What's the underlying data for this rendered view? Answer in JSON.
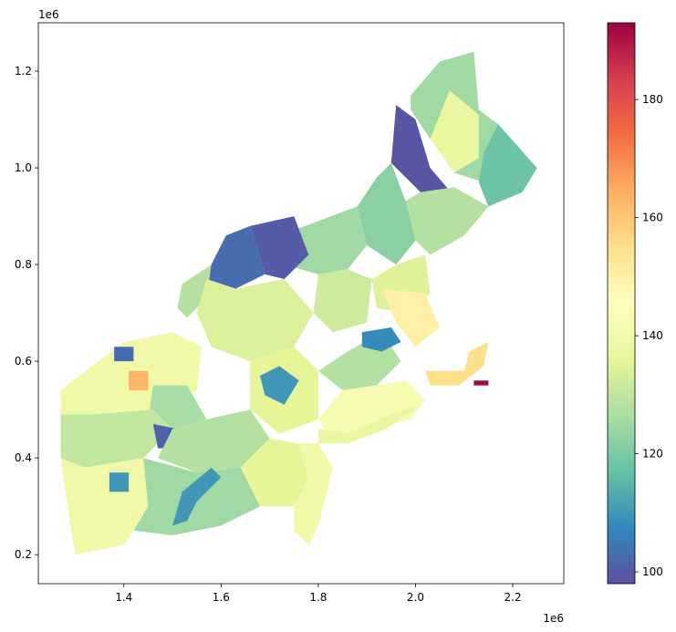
{
  "figure": {
    "x_offset_label": "1e6",
    "y_offset_label": "1e6"
  },
  "chart_data": {
    "type": "heatmap",
    "subtype": "choropleth",
    "title": "",
    "xlabel": "",
    "ylabel": "",
    "xlim": [
      1.22,
      3.01
    ],
    "ylim": [
      0.14,
      1.3
    ],
    "x_ticks": [
      {
        "value": 1.4,
        "label": "1.4"
      },
      {
        "value": 1.6,
        "label": "1.6"
      },
      {
        "value": 1.8,
        "label": "1.8"
      },
      {
        "value": 2.0,
        "label": "2.0"
      },
      {
        "value": 2.2,
        "label": "2.2"
      }
    ],
    "y_ticks": [
      {
        "value": 0.2,
        "label": "0.2"
      },
      {
        "value": 0.4,
        "label": "0.4"
      },
      {
        "value": 0.6,
        "label": "0.6"
      },
      {
        "value": 0.8,
        "label": "0.8"
      },
      {
        "value": 1.0,
        "label": "1.0"
      },
      {
        "value": 1.2,
        "label": "1.2"
      }
    ],
    "colorbar": {
      "colormap": "Spectral_r",
      "min": 98,
      "max": 193,
      "ticks": [
        {
          "value": 100,
          "label": "100"
        },
        {
          "value": 120,
          "label": "120"
        },
        {
          "value": 140,
          "label": "140"
        },
        {
          "value": 160,
          "label": "160"
        },
        {
          "value": 180,
          "label": "180"
        }
      ]
    },
    "regions": [
      {
        "id": "maine-north",
        "value": 125,
        "polygon": [
          [
            1.99,
            1.15
          ],
          [
            2.05,
            1.22
          ],
          [
            2.12,
            1.24
          ],
          [
            2.13,
            1.12
          ],
          [
            2.17,
            1.09
          ],
          [
            2.19,
            1.03
          ],
          [
            2.14,
            0.97
          ],
          [
            2.08,
            0.99
          ],
          [
            2.03,
            1.06
          ],
          [
            1.99,
            1.12
          ]
        ]
      },
      {
        "id": "maine-east",
        "value": 118,
        "polygon": [
          [
            2.17,
            1.09
          ],
          [
            2.25,
            1.0
          ],
          [
            2.22,
            0.95
          ],
          [
            2.15,
            0.92
          ],
          [
            2.13,
            0.97
          ],
          [
            2.14,
            1.03
          ]
        ]
      },
      {
        "id": "maine-mid",
        "value": 138,
        "polygon": [
          [
            2.07,
            1.16
          ],
          [
            2.13,
            1.11
          ],
          [
            2.13,
            1.02
          ],
          [
            2.08,
            0.99
          ],
          [
            2.03,
            1.06
          ]
        ]
      },
      {
        "id": "maine-west-purple",
        "value": 99,
        "polygon": [
          [
            1.96,
            1.13
          ],
          [
            2.0,
            1.1
          ],
          [
            2.03,
            1.0
          ],
          [
            2.09,
            0.93
          ],
          [
            2.06,
            0.9
          ],
          [
            2.01,
            0.95
          ],
          [
            1.95,
            1.01
          ]
        ]
      },
      {
        "id": "maine-south",
        "value": 128,
        "polygon": [
          [
            2.01,
            0.95
          ],
          [
            2.08,
            0.96
          ],
          [
            2.15,
            0.92
          ],
          [
            2.1,
            0.86
          ],
          [
            2.03,
            0.82
          ],
          [
            1.99,
            0.86
          ],
          [
            1.96,
            0.92
          ]
        ]
      },
      {
        "id": "nh-north",
        "value": 122,
        "polygon": [
          [
            1.95,
            1.01
          ],
          [
            1.98,
            0.93
          ],
          [
            2.0,
            0.85
          ],
          [
            1.96,
            0.8
          ],
          [
            1.9,
            0.84
          ],
          [
            1.88,
            0.92
          ],
          [
            1.92,
            0.98
          ]
        ]
      },
      {
        "id": "nh-south",
        "value": 135,
        "polygon": [
          [
            1.96,
            0.8
          ],
          [
            2.02,
            0.82
          ],
          [
            2.03,
            0.74
          ],
          [
            1.98,
            0.7
          ],
          [
            1.92,
            0.71
          ],
          [
            1.91,
            0.77
          ]
        ]
      },
      {
        "id": "vt-north",
        "value": 125,
        "polygon": [
          [
            1.72,
            0.86
          ],
          [
            1.88,
            0.92
          ],
          [
            1.9,
            0.84
          ],
          [
            1.86,
            0.79
          ],
          [
            1.8,
            0.78
          ],
          [
            1.73,
            0.8
          ]
        ]
      },
      {
        "id": "vt-south",
        "value": 132,
        "polygon": [
          [
            1.8,
            0.78
          ],
          [
            1.86,
            0.79
          ],
          [
            1.91,
            0.77
          ],
          [
            1.9,
            0.68
          ],
          [
            1.83,
            0.66
          ],
          [
            1.79,
            0.7
          ]
        ]
      },
      {
        "id": "ny-north-purple",
        "value": 100,
        "polygon": [
          [
            1.66,
            0.88
          ],
          [
            1.75,
            0.9
          ],
          [
            1.78,
            0.82
          ],
          [
            1.73,
            0.77
          ],
          [
            1.69,
            0.78
          ]
        ]
      },
      {
        "id": "ny-adirondack-blue",
        "value": 103,
        "polygon": [
          [
            1.58,
            0.8
          ],
          [
            1.61,
            0.86
          ],
          [
            1.66,
            0.88
          ],
          [
            1.69,
            0.78
          ],
          [
            1.63,
            0.75
          ],
          [
            1.57,
            0.77
          ]
        ]
      },
      {
        "id": "ny-stlawrence",
        "value": 128,
        "polygon": [
          [
            1.51,
            0.71
          ],
          [
            1.52,
            0.76
          ],
          [
            1.58,
            0.8
          ],
          [
            1.57,
            0.73
          ],
          [
            1.53,
            0.69
          ]
        ]
      },
      {
        "id": "ny-central",
        "value": 134,
        "polygon": [
          [
            1.57,
            0.77
          ],
          [
            1.63,
            0.75
          ],
          [
            1.73,
            0.77
          ],
          [
            1.79,
            0.7
          ],
          [
            1.75,
            0.63
          ],
          [
            1.66,
            0.6
          ],
          [
            1.58,
            0.63
          ],
          [
            1.55,
            0.7
          ]
        ]
      },
      {
        "id": "ny-west",
        "value": 140,
        "polygon": [
          [
            1.27,
            0.54
          ],
          [
            1.4,
            0.64
          ],
          [
            1.5,
            0.66
          ],
          [
            1.56,
            0.63
          ],
          [
            1.55,
            0.54
          ],
          [
            1.46,
            0.5
          ],
          [
            1.34,
            0.49
          ],
          [
            1.27,
            0.49
          ]
        ]
      },
      {
        "id": "ny-west-blue",
        "value": 103,
        "polygon": [
          [
            1.38,
            0.63
          ],
          [
            1.42,
            0.63
          ],
          [
            1.42,
            0.6
          ],
          [
            1.38,
            0.6
          ]
        ]
      },
      {
        "id": "ny-west-orange",
        "value": 163,
        "polygon": [
          [
            1.41,
            0.58
          ],
          [
            1.45,
            0.58
          ],
          [
            1.45,
            0.54
          ],
          [
            1.41,
            0.54
          ]
        ]
      },
      {
        "id": "ny-southern-tier",
        "value": 126,
        "polygon": [
          [
            1.46,
            0.55
          ],
          [
            1.53,
            0.55
          ],
          [
            1.57,
            0.48
          ],
          [
            1.5,
            0.46
          ],
          [
            1.45,
            0.48
          ]
        ]
      },
      {
        "id": "ny-hudson",
        "value": 136,
        "polygon": [
          [
            1.66,
            0.6
          ],
          [
            1.75,
            0.63
          ],
          [
            1.8,
            0.58
          ],
          [
            1.8,
            0.48
          ],
          [
            1.72,
            0.45
          ],
          [
            1.66,
            0.5
          ]
        ]
      },
      {
        "id": "ny-blue-county",
        "value": 110,
        "polygon": [
          [
            1.68,
            0.57
          ],
          [
            1.72,
            0.59
          ],
          [
            1.76,
            0.56
          ],
          [
            1.73,
            0.51
          ],
          [
            1.69,
            0.53
          ]
        ]
      },
      {
        "id": "ma-west",
        "value": 128,
        "polygon": [
          [
            1.8,
            0.58
          ],
          [
            1.86,
            0.62
          ],
          [
            1.93,
            0.66
          ],
          [
            1.97,
            0.6
          ],
          [
            1.92,
            0.55
          ],
          [
            1.85,
            0.54
          ]
        ]
      },
      {
        "id": "ma-blue",
        "value": 108,
        "polygon": [
          [
            1.89,
            0.66
          ],
          [
            1.95,
            0.67
          ],
          [
            1.97,
            0.64
          ],
          [
            1.93,
            0.62
          ],
          [
            1.89,
            0.63
          ]
        ]
      },
      {
        "id": "ma-east-yellow",
        "value": 150,
        "polygon": [
          [
            1.93,
            0.75
          ],
          [
            2.02,
            0.74
          ],
          [
            2.05,
            0.67
          ],
          [
            2.0,
            0.63
          ],
          [
            1.96,
            0.68
          ]
        ]
      },
      {
        "id": "ma-capecod",
        "value": 155,
        "polygon": [
          [
            2.02,
            0.58
          ],
          [
            2.1,
            0.58
          ],
          [
            2.11,
            0.62
          ],
          [
            2.15,
            0.64
          ],
          [
            2.14,
            0.59
          ],
          [
            2.09,
            0.55
          ],
          [
            2.03,
            0.55
          ]
        ]
      },
      {
        "id": "nantucket-hot",
        "value": 192,
        "polygon": [
          [
            2.12,
            0.56
          ],
          [
            2.15,
            0.56
          ],
          [
            2.15,
            0.55
          ],
          [
            2.12,
            0.55
          ]
        ]
      },
      {
        "id": "ct-ri",
        "value": 142,
        "polygon": [
          [
            1.8,
            0.48
          ],
          [
            1.85,
            0.54
          ],
          [
            1.92,
            0.55
          ],
          [
            1.98,
            0.56
          ],
          [
            2.02,
            0.52
          ],
          [
            1.99,
            0.48
          ],
          [
            1.88,
            0.45
          ],
          [
            1.82,
            0.45
          ]
        ]
      },
      {
        "id": "long-island",
        "value": 138,
        "polygon": [
          [
            1.8,
            0.46
          ],
          [
            1.86,
            0.45
          ],
          [
            1.95,
            0.49
          ],
          [
            2.01,
            0.51
          ],
          [
            1.94,
            0.46
          ],
          [
            1.86,
            0.43
          ],
          [
            1.8,
            0.43
          ]
        ]
      },
      {
        "id": "pa-northwest",
        "value": 130,
        "polygon": [
          [
            1.27,
            0.49
          ],
          [
            1.34,
            0.49
          ],
          [
            1.46,
            0.5
          ],
          [
            1.5,
            0.46
          ],
          [
            1.44,
            0.4
          ],
          [
            1.32,
            0.38
          ],
          [
            1.27,
            0.4
          ]
        ]
      },
      {
        "id": "pa-purple",
        "value": 101,
        "polygon": [
          [
            1.46,
            0.47
          ],
          [
            1.51,
            0.46
          ],
          [
            1.52,
            0.42
          ],
          [
            1.47,
            0.42
          ]
        ]
      },
      {
        "id": "pa-central",
        "value": 128,
        "polygon": [
          [
            1.5,
            0.46
          ],
          [
            1.57,
            0.48
          ],
          [
            1.66,
            0.5
          ],
          [
            1.7,
            0.44
          ],
          [
            1.64,
            0.38
          ],
          [
            1.55,
            0.37
          ],
          [
            1.47,
            0.4
          ]
        ]
      },
      {
        "id": "pa-southwest",
        "value": 140,
        "polygon": [
          [
            1.27,
            0.4
          ],
          [
            1.32,
            0.38
          ],
          [
            1.44,
            0.4
          ],
          [
            1.45,
            0.3
          ],
          [
            1.4,
            0.22
          ],
          [
            1.3,
            0.2
          ],
          [
            1.29,
            0.26
          ]
        ]
      },
      {
        "id": "pa-blue-sw",
        "value": 110,
        "polygon": [
          [
            1.37,
            0.37
          ],
          [
            1.41,
            0.37
          ],
          [
            1.41,
            0.33
          ],
          [
            1.37,
            0.33
          ]
        ]
      },
      {
        "id": "pa-south",
        "value": 125,
        "polygon": [
          [
            1.44,
            0.4
          ],
          [
            1.55,
            0.37
          ],
          [
            1.64,
            0.38
          ],
          [
            1.68,
            0.3
          ],
          [
            1.6,
            0.26
          ],
          [
            1.5,
            0.24
          ],
          [
            1.42,
            0.25
          ],
          [
            1.45,
            0.3
          ]
        ]
      },
      {
        "id": "pa-blue-ridge",
        "value": 110,
        "polygon": [
          [
            1.52,
            0.33
          ],
          [
            1.58,
            0.38
          ],
          [
            1.6,
            0.36
          ],
          [
            1.55,
            0.31
          ],
          [
            1.53,
            0.27
          ],
          [
            1.5,
            0.26
          ]
        ]
      },
      {
        "id": "pa-southeast",
        "value": 136,
        "polygon": [
          [
            1.64,
            0.38
          ],
          [
            1.7,
            0.44
          ],
          [
            1.76,
            0.43
          ],
          [
            1.78,
            0.36
          ],
          [
            1.75,
            0.3
          ],
          [
            1.68,
            0.3
          ]
        ]
      },
      {
        "id": "nj",
        "value": 140,
        "polygon": [
          [
            1.76,
            0.43
          ],
          [
            1.8,
            0.43
          ],
          [
            1.83,
            0.38
          ],
          [
            1.8,
            0.26
          ],
          [
            1.78,
            0.22
          ],
          [
            1.75,
            0.25
          ],
          [
            1.75,
            0.3
          ],
          [
            1.78,
            0.36
          ]
        ]
      }
    ]
  }
}
